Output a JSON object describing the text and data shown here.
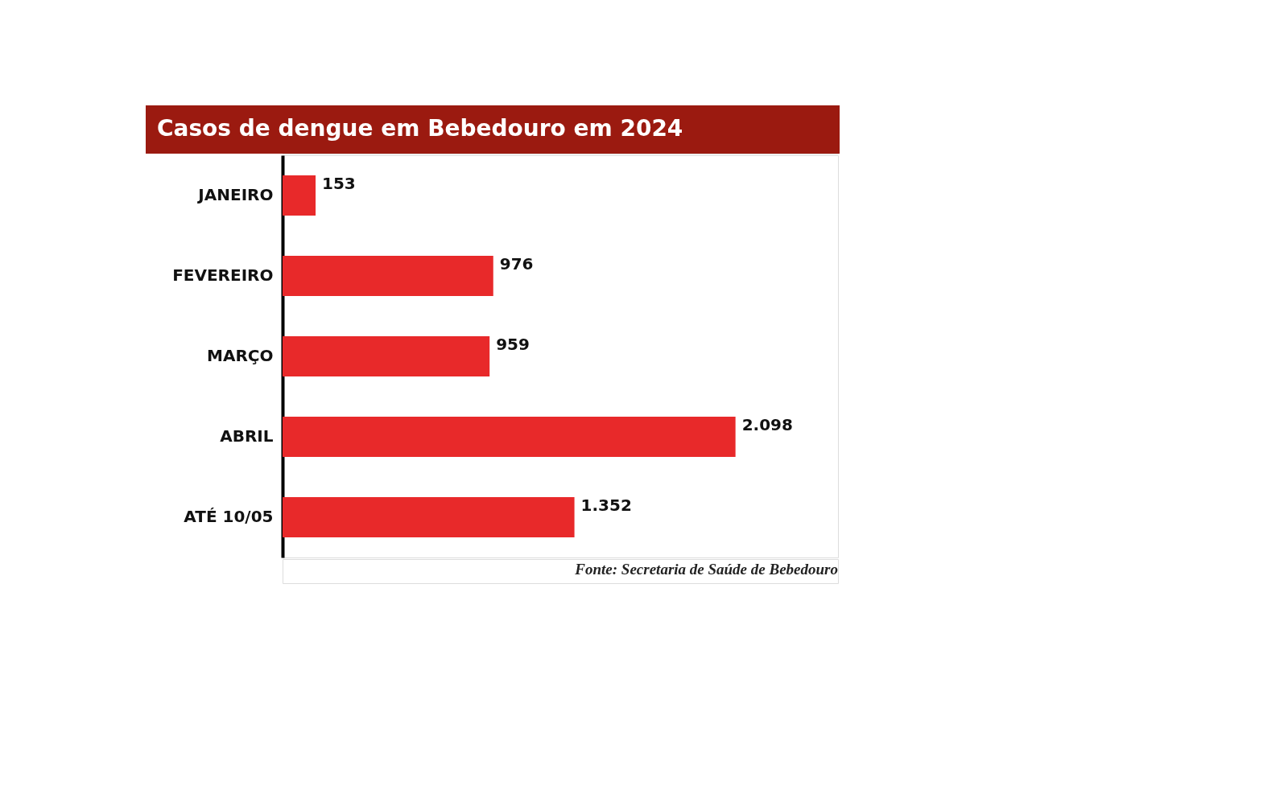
{
  "chart_data": {
    "type": "bar",
    "orientation": "horizontal",
    "title": "Casos de dengue em Bebedouro em 2024",
    "categories": [
      "JANEIRO",
      "FEVEREIRO",
      "MARÇO",
      "ABRIL",
      "ATÉ 10/05"
    ],
    "values": [
      153,
      976,
      959,
      2098,
      1352
    ],
    "value_labels": [
      "153",
      "976",
      "959",
      "2.098",
      "1.352"
    ],
    "color": "#e8292a",
    "grid": false,
    "annotations": [
      "Fonte: Secretaria de Saúde de Bebedouro"
    ]
  }
}
